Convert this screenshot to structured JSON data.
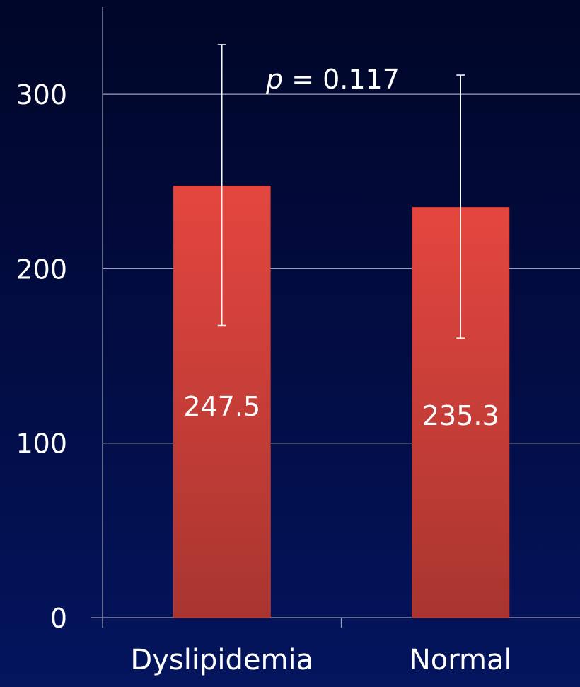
{
  "chart_data": {
    "type": "bar",
    "categories": [
      "Dyslipidemia",
      "Normal"
    ],
    "values": [
      247.5,
      235.3
    ],
    "error_bars": [
      {
        "low": 167.5,
        "high": 328.5
      },
      {
        "low": 160.3,
        "high": 311.0
      }
    ],
    "data_labels": [
      "247.5",
      "235.3"
    ],
    "annotation": {
      "p_symbol": "p",
      "text": " = 0.117"
    },
    "y_ticks": [
      0,
      100,
      200,
      300
    ],
    "y_tick_labels": [
      "0",
      "100",
      "200",
      "300"
    ],
    "ylim": [
      0,
      350
    ],
    "grid": true,
    "bar_color": "#d9423f",
    "background_color": "#020d45"
  }
}
